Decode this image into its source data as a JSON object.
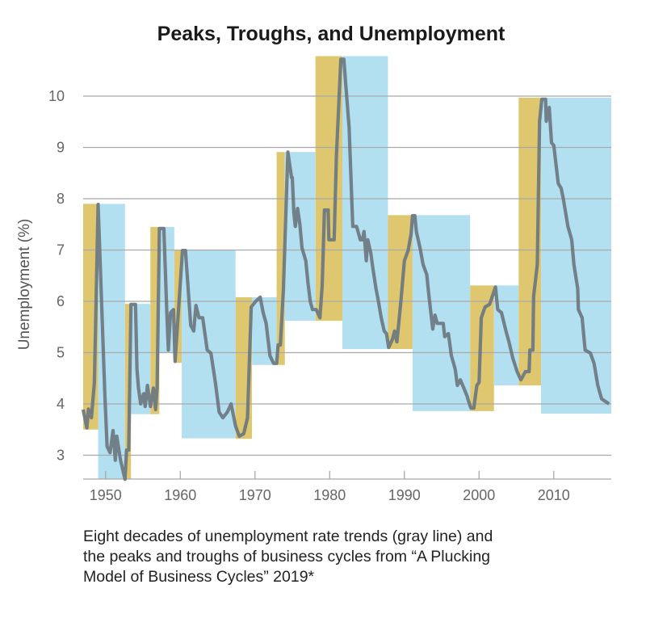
{
  "chart_data": {
    "type": "line",
    "title": "Peaks, Troughs, and Unemployment",
    "xlabel": "",
    "ylabel": "Unemployment (%)",
    "xlim": [
      1947.0,
      2017.7
    ],
    "ylim": [
      2.53,
      10.78
    ],
    "x_ticks": [
      1950,
      1960,
      1970,
      1980,
      1990,
      2000,
      2010
    ],
    "y_ticks": [
      3,
      4,
      5,
      6,
      7,
      8,
      9,
      10
    ],
    "grid": "horizontal",
    "colors": {
      "line": "#6b7780",
      "rising_band": "#dfc76f",
      "falling_band": "#b3e0f1",
      "grid": "#a9a9a9"
    },
    "bands": [
      {
        "kind": "rising",
        "x": [
          1947.0,
          1949.0
        ],
        "y": [
          3.5,
          7.9
        ]
      },
      {
        "kind": "falling",
        "x": [
          1949.0,
          1952.6
        ],
        "y": [
          2.53,
          7.9
        ]
      },
      {
        "kind": "rising",
        "x": [
          1952.6,
          1953.4
        ],
        "y": [
          2.53,
          5.95
        ]
      },
      {
        "kind": "falling",
        "x": [
          1953.4,
          1956.0
        ],
        "y": [
          3.8,
          5.95
        ]
      },
      {
        "kind": "rising",
        "x": [
          1956.0,
          1957.2
        ],
        "y": [
          3.8,
          7.45
        ]
      },
      {
        "kind": "falling",
        "x": [
          1957.2,
          1959.2
        ],
        "y": [
          4.99,
          7.45
        ]
      },
      {
        "kind": "rising",
        "x": [
          1959.2,
          1960.2
        ],
        "y": [
          4.8,
          7.0
        ]
      },
      {
        "kind": "falling",
        "x": [
          1960.2,
          1967.4
        ],
        "y": [
          3.33,
          7.0
        ]
      },
      {
        "kind": "rising",
        "x": [
          1967.4,
          1969.6
        ],
        "y": [
          3.32,
          6.08
        ]
      },
      {
        "kind": "falling",
        "x": [
          1969.6,
          1972.9
        ],
        "y": [
          4.76,
          6.08
        ]
      },
      {
        "kind": "rising",
        "x": [
          1972.9,
          1974.0
        ],
        "y": [
          4.76,
          8.91
        ]
      },
      {
        "kind": "falling",
        "x": [
          1974.0,
          1978.1
        ],
        "y": [
          5.62,
          8.91
        ]
      },
      {
        "kind": "rising",
        "x": [
          1978.1,
          1981.7
        ],
        "y": [
          5.62,
          10.78
        ]
      },
      {
        "kind": "falling",
        "x": [
          1981.7,
          1987.8
        ],
        "y": [
          5.07,
          10.78
        ]
      },
      {
        "kind": "rising",
        "x": [
          1987.8,
          1991.1
        ],
        "y": [
          5.07,
          7.68
        ]
      },
      {
        "kind": "falling",
        "x": [
          1991.1,
          1998.8
        ],
        "y": [
          3.86,
          7.68
        ]
      },
      {
        "kind": "rising",
        "x": [
          1998.8,
          2002.0
        ],
        "y": [
          3.86,
          6.31
        ]
      },
      {
        "kind": "falling",
        "x": [
          2002.0,
          2005.3
        ],
        "y": [
          4.36,
          6.31
        ]
      },
      {
        "kind": "rising",
        "x": [
          2005.3,
          2008.3
        ],
        "y": [
          4.36,
          9.97
        ]
      },
      {
        "kind": "falling",
        "x": [
          2008.3,
          2017.7
        ],
        "y": [
          3.81,
          9.97
        ]
      }
    ],
    "series": [
      {
        "points": [
          [
            1947.0,
            3.89
          ],
          [
            1947.5,
            3.53
          ],
          [
            1947.7,
            3.9
          ],
          [
            1948.1,
            3.73
          ],
          [
            1948.5,
            4.42
          ],
          [
            1949.0,
            7.89
          ],
          [
            1949.9,
            4.2
          ],
          [
            1950.2,
            3.17
          ],
          [
            1950.6,
            3.05
          ],
          [
            1951.0,
            3.48
          ],
          [
            1951.3,
            2.9
          ],
          [
            1951.5,
            3.37
          ],
          [
            1952.0,
            2.9
          ],
          [
            1952.6,
            2.53
          ],
          [
            1952.8,
            3.1
          ],
          [
            1953.1,
            3.1
          ],
          [
            1953.4,
            5.94
          ],
          [
            1954.0,
            5.94
          ],
          [
            1954.2,
            4.68
          ],
          [
            1954.4,
            4.31
          ],
          [
            1954.7,
            4.0
          ],
          [
            1955.1,
            4.2
          ],
          [
            1955.3,
            3.95
          ],
          [
            1955.6,
            4.36
          ],
          [
            1956.0,
            3.95
          ],
          [
            1956.4,
            4.31
          ],
          [
            1956.7,
            3.89
          ],
          [
            1956.9,
            4.31
          ],
          [
            1957.2,
            7.42
          ],
          [
            1957.8,
            7.42
          ],
          [
            1958.2,
            5.78
          ],
          [
            1958.4,
            5.05
          ],
          [
            1958.7,
            5.78
          ],
          [
            1959.1,
            5.84
          ],
          [
            1959.3,
            4.83
          ],
          [
            1960.3,
            6.99
          ],
          [
            1960.7,
            6.99
          ],
          [
            1961.4,
            5.53
          ],
          [
            1961.8,
            5.42
          ],
          [
            1962.1,
            5.92
          ],
          [
            1962.5,
            5.68
          ],
          [
            1963.0,
            5.68
          ],
          [
            1963.6,
            5.05
          ],
          [
            1964.1,
            4.99
          ],
          [
            1964.7,
            4.42
          ],
          [
            1965.2,
            3.84
          ],
          [
            1965.7,
            3.73
          ],
          [
            1966.3,
            3.84
          ],
          [
            1966.8,
            4.0
          ],
          [
            1967.4,
            3.57
          ],
          [
            1967.9,
            3.37
          ],
          [
            1968.5,
            3.42
          ],
          [
            1969.0,
            3.73
          ],
          [
            1969.5,
            5.89
          ],
          [
            1970.1,
            6.0
          ],
          [
            1970.7,
            6.08
          ],
          [
            1971.1,
            5.78
          ],
          [
            1971.5,
            5.57
          ],
          [
            1972.0,
            4.94
          ],
          [
            1972.5,
            4.79
          ],
          [
            1972.9,
            4.79
          ],
          [
            1973.1,
            5.15
          ],
          [
            1973.4,
            5.15
          ],
          [
            1973.8,
            6.2
          ],
          [
            1974.4,
            8.91
          ],
          [
            1974.9,
            8.41
          ],
          [
            1975.0,
            8.41
          ],
          [
            1975.2,
            7.73
          ],
          [
            1975.4,
            7.46
          ],
          [
            1975.7,
            7.81
          ],
          [
            1976.0,
            7.51
          ],
          [
            1976.3,
            7.04
          ],
          [
            1976.8,
            6.79
          ],
          [
            1977.1,
            6.36
          ],
          [
            1977.4,
            6.0
          ],
          [
            1977.7,
            5.84
          ],
          [
            1978.2,
            5.84
          ],
          [
            1978.7,
            5.68
          ],
          [
            1979.0,
            6.31
          ],
          [
            1979.3,
            7.78
          ],
          [
            1979.8,
            7.78
          ],
          [
            1979.9,
            7.2
          ],
          [
            1980.6,
            7.2
          ],
          [
            1980.9,
            8.83
          ],
          [
            1981.5,
            10.72
          ],
          [
            1981.9,
            10.72
          ],
          [
            1982.2,
            10.14
          ],
          [
            1982.6,
            9.4
          ],
          [
            1983.0,
            7.83
          ],
          [
            1983.1,
            7.46
          ],
          [
            1983.6,
            7.46
          ],
          [
            1984.1,
            7.2
          ],
          [
            1984.4,
            7.2
          ],
          [
            1984.6,
            7.36
          ],
          [
            1984.9,
            6.79
          ],
          [
            1985.1,
            7.2
          ],
          [
            1985.5,
            6.95
          ],
          [
            1985.8,
            6.63
          ],
          [
            1986.2,
            6.25
          ],
          [
            1986.5,
            6.02
          ],
          [
            1986.9,
            5.68
          ],
          [
            1987.3,
            5.42
          ],
          [
            1987.6,
            5.37
          ],
          [
            1987.9,
            5.1
          ],
          [
            1988.4,
            5.26
          ],
          [
            1988.7,
            5.42
          ],
          [
            1989.0,
            5.21
          ],
          [
            1989.5,
            5.94
          ],
          [
            1990.0,
            6.79
          ],
          [
            1990.5,
            6.99
          ],
          [
            1990.9,
            7.31
          ],
          [
            1991.1,
            7.67
          ],
          [
            1991.4,
            7.67
          ],
          [
            1991.6,
            7.36
          ],
          [
            1992.1,
            7.04
          ],
          [
            1992.5,
            6.72
          ],
          [
            1993.0,
            6.52
          ],
          [
            1993.3,
            6.09
          ],
          [
            1993.8,
            5.46
          ],
          [
            1994.1,
            5.73
          ],
          [
            1994.4,
            5.57
          ],
          [
            1995.2,
            5.57
          ],
          [
            1995.4,
            5.31
          ],
          [
            1995.9,
            5.37
          ],
          [
            1996.3,
            4.94
          ],
          [
            1996.8,
            4.68
          ],
          [
            1997.1,
            4.36
          ],
          [
            1997.5,
            4.47
          ],
          [
            1998.1,
            4.26
          ],
          [
            1998.4,
            4.15
          ],
          [
            1998.6,
            4.05
          ],
          [
            1998.9,
            3.92
          ],
          [
            1999.3,
            3.92
          ],
          [
            1999.7,
            4.36
          ],
          [
            2000.0,
            4.42
          ],
          [
            2000.3,
            5.68
          ],
          [
            2000.8,
            5.89
          ],
          [
            2001.4,
            5.94
          ],
          [
            2001.6,
            6.02
          ],
          [
            2002.2,
            6.28
          ],
          [
            2002.5,
            5.84
          ],
          [
            2003.0,
            5.78
          ],
          [
            2003.6,
            5.42
          ],
          [
            2004.0,
            5.21
          ],
          [
            2004.5,
            4.9
          ],
          [
            2005.1,
            4.63
          ],
          [
            2005.6,
            4.47
          ],
          [
            2006.2,
            4.63
          ],
          [
            2006.7,
            4.63
          ],
          [
            2006.8,
            5.05
          ],
          [
            2007.2,
            5.05
          ],
          [
            2007.3,
            6.09
          ],
          [
            2007.8,
            6.72
          ],
          [
            2008.1,
            9.51
          ],
          [
            2008.4,
            9.94
          ],
          [
            2008.9,
            9.94
          ],
          [
            2009.0,
            9.51
          ],
          [
            2009.4,
            9.78
          ],
          [
            2009.7,
            9.09
          ],
          [
            2010.0,
            9.04
          ],
          [
            2010.6,
            8.3
          ],
          [
            2011.0,
            8.2
          ],
          [
            2011.3,
            7.98
          ],
          [
            2011.9,
            7.46
          ],
          [
            2012.4,
            7.2
          ],
          [
            2012.7,
            6.72
          ],
          [
            2013.2,
            6.25
          ],
          [
            2013.3,
            5.84
          ],
          [
            2013.8,
            5.68
          ],
          [
            2014.2,
            5.05
          ],
          [
            2014.9,
            4.99
          ],
          [
            2015.4,
            4.79
          ],
          [
            2015.9,
            4.36
          ],
          [
            2016.4,
            4.1
          ],
          [
            2017.0,
            4.04
          ],
          [
            2017.4,
            4.0
          ]
        ]
      }
    ]
  },
  "caption_lines": [
    "Eight decades of unemployment rate trends (gray line) and",
    "the peaks and troughs of business cycles from “A Plucking",
    "Model of Business Cycles” 2019*"
  ]
}
